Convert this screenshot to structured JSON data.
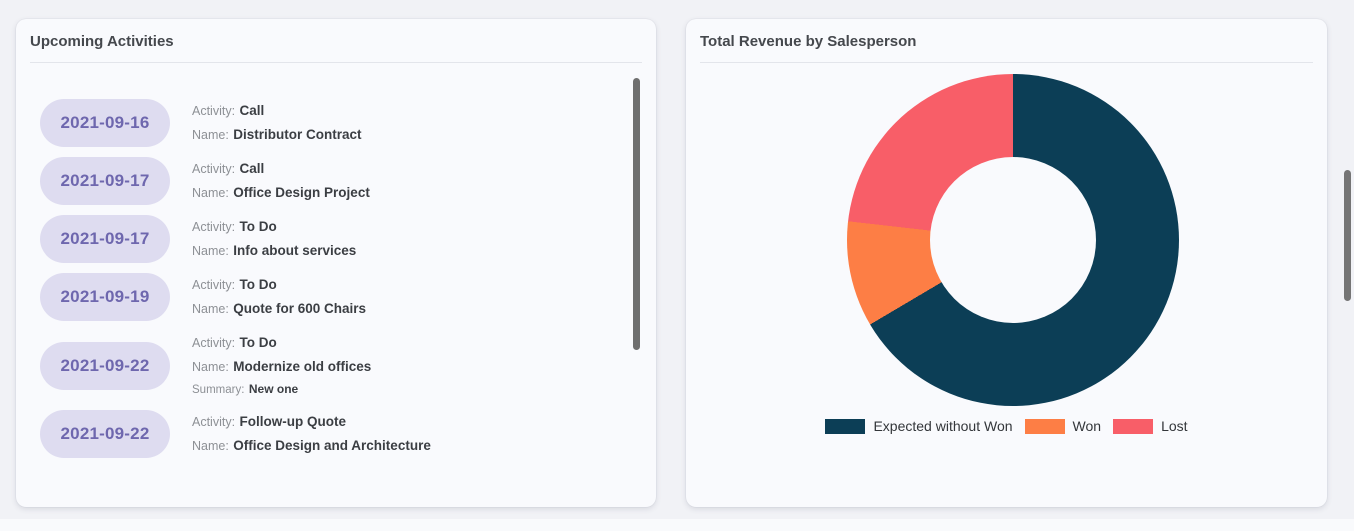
{
  "activities_card": {
    "title": "Upcoming Activities",
    "items": [
      {
        "date": "2021-09-16",
        "fields": [
          {
            "label": "Activity:",
            "value": "Call"
          },
          {
            "label": "Name:",
            "value": "Distributor Contract"
          }
        ]
      },
      {
        "date": "2021-09-17",
        "fields": [
          {
            "label": "Activity:",
            "value": "Call"
          },
          {
            "label": "Name:",
            "value": "Office Design Project"
          }
        ]
      },
      {
        "date": "2021-09-17",
        "fields": [
          {
            "label": "Activity:",
            "value": "To Do"
          },
          {
            "label": "Name:",
            "value": "Info about services"
          }
        ]
      },
      {
        "date": "2021-09-19",
        "fields": [
          {
            "label": "Activity:",
            "value": "To Do"
          },
          {
            "label": "Name:",
            "value": "Quote for 600 Chairs"
          }
        ]
      },
      {
        "date": "2021-09-22",
        "fields": [
          {
            "label": "Activity:",
            "value": "To Do"
          },
          {
            "label": "Name:",
            "value": "Modernize old offices"
          },
          {
            "label": "Summary:",
            "value": "New one",
            "small": true
          }
        ]
      },
      {
        "date": "2021-09-22",
        "fields": [
          {
            "label": "Activity:",
            "value": "Follow-up Quote"
          },
          {
            "label": "Name:",
            "value": "Office Design and Architecture"
          }
        ]
      }
    ]
  },
  "revenue_card": {
    "title": "Total Revenue by Salesperson"
  },
  "chart_data": {
    "type": "pie",
    "title": "Total Revenue by Salesperson",
    "donut": true,
    "inner_radius_ratio": 0.5,
    "start_angle_deg": 0,
    "direction": "clockwise",
    "legend_position": "bottom",
    "segments": [
      {
        "label": "Expected without Won",
        "percent": 66.5,
        "color": "#0c3e56"
      },
      {
        "label": "Won",
        "percent": 10.3,
        "color": "#fd7e45"
      },
      {
        "label": "Lost",
        "percent": 23.2,
        "color": "#f85e68"
      }
    ]
  },
  "colors": {
    "page_background": "#f1f2f6",
    "card_background": "#f9fafd",
    "date_pill_background": "#dedcf0",
    "date_pill_text": "#6e67ae",
    "scrollbar_thumb": "#6f6f6f"
  }
}
